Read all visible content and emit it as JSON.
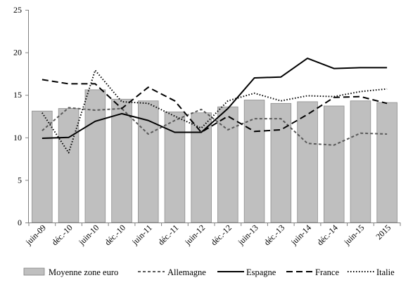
{
  "chart_data": {
    "type": "bar+line",
    "categories": [
      "juin-09",
      "déc.-10",
      "juin-10",
      "déc.-10",
      "juin-11",
      "déc.-11",
      "juin-12",
      "déc.-12",
      "juin-13",
      "déc.-13",
      "juin-14",
      "déc.-14",
      "juin-15",
      "2015"
    ],
    "ylim": [
      0,
      25
    ],
    "yticks": [
      0,
      5,
      10,
      15,
      20,
      25
    ],
    "grid": false,
    "legend_position": "bottom",
    "bars": {
      "name": "Moyenne zone euro",
      "color": "#bfbfbf",
      "values": [
        13.1,
        13.4,
        15.6,
        14.5,
        14.3,
        13.0,
        12.9,
        13.6,
        14.4,
        14.0,
        14.2,
        13.7,
        14.3,
        14.1
      ]
    },
    "series": [
      {
        "name": "Allemagne",
        "style": "dashed-gray",
        "color": "#595959",
        "values": [
          10.8,
          13.5,
          13.2,
          13.4,
          10.4,
          12.0,
          13.3,
          10.9,
          12.2,
          12.2,
          9.3,
          9.1,
          10.5,
          10.4
        ]
      },
      {
        "name": "Espagne",
        "style": "solid",
        "color": "#000000",
        "values": [
          9.9,
          10.0,
          11.9,
          12.8,
          12.0,
          10.6,
          10.6,
          13.4,
          17.0,
          17.1,
          19.3,
          18.1,
          18.2,
          18.2
        ]
      },
      {
        "name": "France",
        "style": "long-dash",
        "color": "#000000",
        "values": [
          16.8,
          16.3,
          16.3,
          13.4,
          15.9,
          14.3,
          10.6,
          12.5,
          10.7,
          10.9,
          12.7,
          14.7,
          14.8,
          14.0
        ]
      },
      {
        "name": "Italie",
        "style": "dotted",
        "color": "#000000",
        "values": [
          12.9,
          8.2,
          17.9,
          14.2,
          14.0,
          12.5,
          11.1,
          14.3,
          15.2,
          14.3,
          14.9,
          14.8,
          15.4,
          15.7
        ]
      }
    ]
  }
}
